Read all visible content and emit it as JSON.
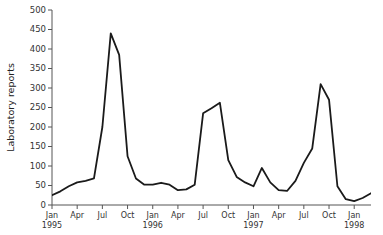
{
  "chart_data": {
    "type": "line",
    "ylabel": "Laboratory reports",
    "categories": [
      "Jan\n1995",
      null,
      null,
      "Apr",
      null,
      null,
      "Jul",
      null,
      null,
      "Oct",
      null,
      null,
      "Jan\n1996",
      null,
      null,
      "Apr",
      null,
      null,
      "Jul",
      null,
      null,
      "Oct",
      null,
      null,
      "Jan\n1997",
      null,
      null,
      "Apr",
      null,
      null,
      "Jul",
      null,
      null,
      "Oct",
      null,
      null,
      "Jan\n1998",
      null,
      null
    ],
    "values": [
      25,
      35,
      48,
      58,
      62,
      68,
      200,
      440,
      385,
      125,
      68,
      52,
      52,
      57,
      52,
      38,
      40,
      52,
      235,
      248,
      262,
      115,
      72,
      58,
      48,
      95,
      58,
      38,
      36,
      62,
      108,
      145,
      310,
      270,
      48,
      15,
      10,
      18,
      30
    ],
    "color": "#1a1a1a",
    "ylim": [
      0,
      500
    ],
    "yticks": [
      0,
      50,
      100,
      150,
      200,
      250,
      300,
      350,
      400,
      450,
      500
    ],
    "grid": false
  }
}
